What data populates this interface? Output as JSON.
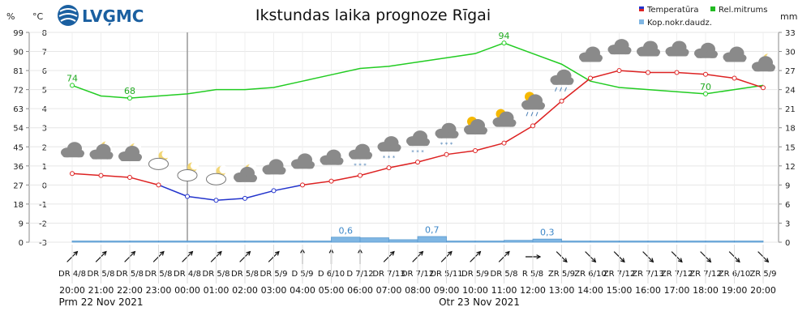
{
  "brand": "LVĢMC",
  "title": "Ikstundas laika prognoze Rīgai",
  "legend": [
    {
      "label": "Temperatūra",
      "color": "#2233cc"
    },
    {
      "label": "Rel.mitrums",
      "color": "#22bb22"
    },
    {
      "label": "Kop.nokr.daudz.",
      "color": "#7fb6e3"
    }
  ],
  "axes": {
    "left_pct_unit": "%",
    "left_temp_unit": "°C",
    "right_unit": "mm",
    "pct_ticks": [
      "99",
      "90",
      "81",
      "72",
      "63",
      "54",
      "45",
      "36",
      "27",
      "18",
      "9",
      "0"
    ],
    "temp_ticks": [
      "8",
      "7",
      "6",
      "5",
      "4",
      "3",
      "2",
      "1",
      "0",
      "-1",
      "-2",
      "-3"
    ],
    "mm_ticks": [
      "33",
      "30",
      "27",
      "24",
      "21",
      "18",
      "15",
      "12",
      "9",
      "6",
      "3",
      "0"
    ]
  },
  "chart_data": {
    "type": "line",
    "x": [
      "20:00",
      "21:00",
      "22:00",
      "23:00",
      "00:00",
      "01:00",
      "02:00",
      "03:00",
      "04:00",
      "05:00",
      "06:00",
      "07:00",
      "08:00",
      "09:00",
      "10:00",
      "11:00",
      "12:00",
      "13:00",
      "14:00",
      "15:00",
      "16:00",
      "17:00",
      "18:00",
      "19:00",
      "20:00"
    ],
    "series": [
      {
        "name": "Temperatūra",
        "axis": "temp",
        "color_warm": "#dd2222",
        "color_cold": "#2233cc",
        "values": [
          0.6,
          0.5,
          0.4,
          0.0,
          -0.6,
          -0.8,
          -0.7,
          -0.3,
          0.0,
          0.2,
          0.5,
          0.9,
          1.2,
          1.6,
          1.8,
          2.2,
          3.1,
          4.4,
          5.6,
          6.0,
          5.9,
          5.9,
          5.8,
          5.6,
          5.1
        ]
      },
      {
        "name": "Rel.mitrums",
        "axis": "pct",
        "color": "#22cc22",
        "values": [
          74,
          69,
          68,
          69,
          70,
          72,
          72,
          73,
          76,
          79,
          82,
          83,
          85,
          87,
          89,
          94,
          89,
          84,
          76,
          73,
          72,
          71,
          70,
          72,
          74
        ],
        "labeled": {
          "0": "74",
          "2": "68",
          "15": "94",
          "22": "70"
        }
      },
      {
        "name": "Kop.nokr.daudz.",
        "axis": "mm",
        "type": "bar",
        "color": "#7fb6e3",
        "values": [
          0,
          0,
          0,
          0,
          0,
          0,
          0,
          0,
          0,
          0.6,
          0.5,
          0.2,
          0.7,
          0,
          0,
          0.1,
          0.3,
          0,
          0,
          0,
          0,
          0,
          0,
          0,
          0
        ],
        "labeled": {
          "9": "0,6",
          "12": "0,7",
          "16": "0,3"
        }
      }
    ],
    "ylim_temp": [
      -3,
      8
    ],
    "ylim_pct": [
      0,
      99
    ],
    "ylim_mm": [
      0,
      33
    ],
    "wind_labels": [
      "DR 4/8",
      "DR 5/8",
      "DR 5/8",
      "DR 5/8",
      "DR 4/8",
      "DR 5/8",
      "DR 5/8",
      "DR 5/9",
      "D 5/9",
      "D 6/10",
      "D 7/12",
      "DR 7/13",
      "DR 7/12",
      "DR 5/11",
      "DR 5/9",
      "DR 5/8",
      "R 5/8",
      "ZR 5/9",
      "ZR 6/10",
      "ZR 7/12",
      "ZR 7/13",
      "ZR 7/12",
      "ZR 7/12",
      "ZR 6/10",
      "ZR 5/9"
    ],
    "wind_dirs": [
      "DR",
      "DR",
      "DR",
      "DR",
      "DR",
      "DR",
      "DR",
      "DR",
      "D",
      "D",
      "D",
      "DR",
      "DR",
      "DR",
      "DR",
      "DR",
      "R",
      "ZR",
      "ZR",
      "ZR",
      "ZR",
      "ZR",
      "ZR",
      "ZR",
      "ZR"
    ],
    "weather_icons": [
      "cloudy",
      "cloudy-moon",
      "cloudy-moon",
      "cloud-moon",
      "cloud-moon",
      "cloud-moon",
      "cloudy-moon",
      "cloudy",
      "cloudy",
      "cloudy",
      "snow",
      "snow",
      "snow",
      "snow",
      "sun-cloud",
      "sun-cloud",
      "sun-rain",
      "rain",
      "cloudy",
      "cloudy",
      "cloudy",
      "cloudy",
      "cloudy",
      "cloudy",
      "cloudy-moon"
    ],
    "date_labels": [
      {
        "index": 1,
        "text": "Prm 22 Nov 2021"
      },
      {
        "index": 14,
        "text": "Otr 23 Nov 2021"
      }
    ]
  }
}
